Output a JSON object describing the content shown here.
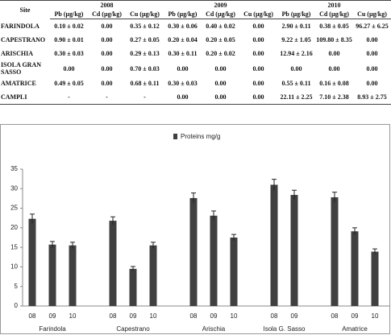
{
  "table": {
    "site_header": "Site",
    "years": [
      "2008",
      "2009",
      "2010"
    ],
    "columns": [
      "Pb (µg/kg)",
      "Cd (µg/kg)",
      "Cu (µg/kg)"
    ],
    "rows": [
      [
        "FARINDOLA",
        "0.10 ± 0.02",
        "0.00",
        "0.35 ± 0.12",
        "0.30 ± 0.06",
        "0.40 ± 0.02",
        "0.00",
        "2.90 ± 0.11",
        "0.38 ± 0.05",
        "96.27 ± 6.25"
      ],
      [
        "CAPESTRANO",
        "0.90 ± 0.01",
        "0.00",
        "0.27 ± 0.05",
        "0.20 ± 0.04",
        "0.20 ± 0.05",
        "0.00",
        "9.22 ± 1.05",
        "109.80 ± 8.35",
        "0.00"
      ],
      [
        "ARISCHIA",
        "0.30 ± 0.03",
        "0.00",
        "0.29 ± 0.13",
        "0.30 ± 0.11",
        "0.20 ± 0.02",
        "0.00",
        "12.94 ± 2.16",
        "0.00",
        "0.00"
      ],
      [
        "ISOLA GRAN SASSO",
        "0.00",
        "0.00",
        "0.70 ± 0.03",
        "0.00",
        "0.00",
        "0.00",
        "0.00",
        "0.00",
        "0.00"
      ],
      [
        "AMATRICE",
        "0.49 ± 0.05",
        "0.00",
        "0.68 ± 0.11",
        "0.30 ± 0.03",
        "0.00",
        "0.00",
        "0.55 ± 0.11",
        "0.16 ± 0.08",
        "0.00"
      ],
      [
        "CAMPLI",
        "-",
        "-",
        "-",
        "0.00",
        "0.00",
        "0.00",
        "22.11 ± 2.25",
        "7.10 ± 2.38",
        "8.93 ± 2.75"
      ]
    ]
  },
  "chart_data": {
    "type": "bar",
    "legend": "Proteins mg/g",
    "color": "#404040",
    "ylim": [
      0,
      35
    ],
    "yticks": [
      0,
      5,
      10,
      15,
      20,
      25,
      30,
      35
    ],
    "groups": [
      {
        "name": "Farindola",
        "categories": [
          "08",
          "09",
          "10"
        ],
        "values": [
          22.3,
          15.7,
          15.5
        ],
        "errors": [
          1.2,
          0.8,
          0.8
        ]
      },
      {
        "name": "Capestrano",
        "categories": [
          "08",
          "09",
          "10"
        ],
        "values": [
          21.8,
          9.5,
          15.5
        ],
        "errors": [
          1.0,
          0.6,
          0.8
        ]
      },
      {
        "name": "Arischia",
        "categories": [
          "08",
          "09",
          "10"
        ],
        "values": [
          27.6,
          23.1,
          17.5
        ],
        "errors": [
          1.3,
          1.2,
          0.8
        ]
      },
      {
        "name": "Isola G. Sasso",
        "categories": [
          "08",
          "09"
        ],
        "values": [
          31.0,
          28.4
        ],
        "errors": [
          1.4,
          1.2
        ]
      },
      {
        "name": "Amatrice",
        "categories": [
          "08",
          "09",
          "10"
        ],
        "values": [
          27.8,
          19.1,
          13.9
        ],
        "errors": [
          1.3,
          0.9,
          0.7
        ]
      }
    ]
  }
}
